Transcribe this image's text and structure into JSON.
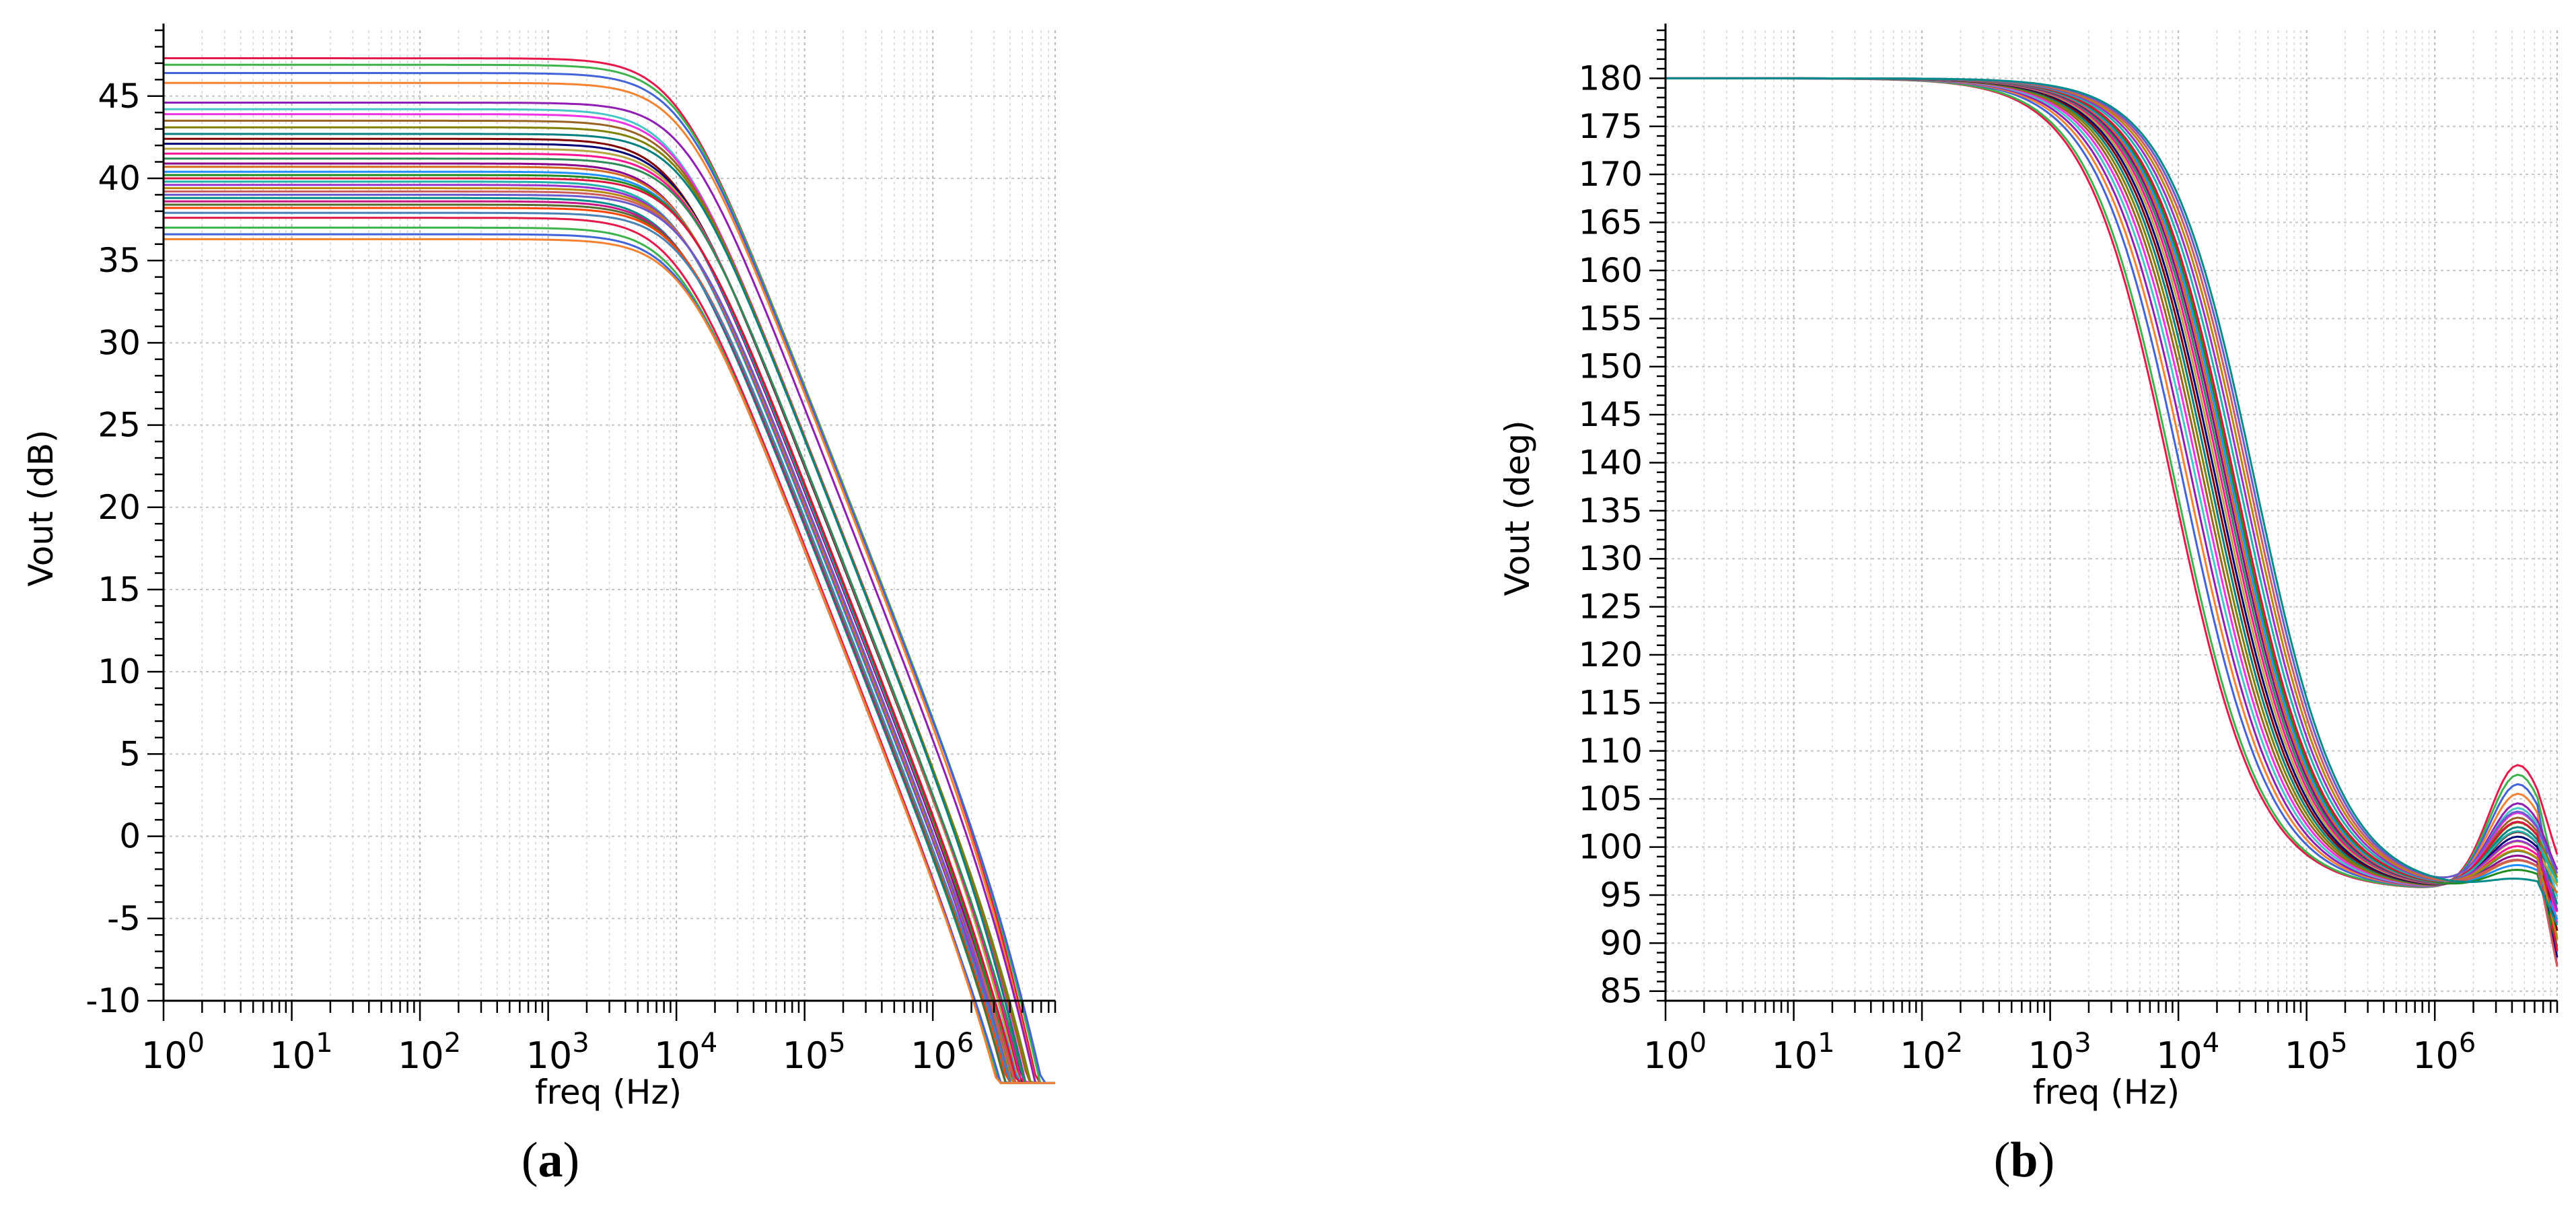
{
  "chart_data": [
    {
      "type": "line",
      "panel_label": "a",
      "xlabel": "freq (Hz)",
      "ylabel": "Vout (dB)",
      "xscale": "log",
      "xlim": [
        1,
        9000000
      ],
      "ylim": [
        -10,
        49
      ],
      "x_ticks": [
        1,
        10,
        100,
        1000,
        10000,
        100000,
        1000000
      ],
      "x_tick_labels": [
        {
          "base": "10",
          "exp": "0"
        },
        {
          "base": "10",
          "exp": "1"
        },
        {
          "base": "10",
          "exp": "2"
        },
        {
          "base": "10",
          "exp": "3"
        },
        {
          "base": "10",
          "exp": "4"
        },
        {
          "base": "10",
          "exp": "5"
        },
        {
          "base": "10",
          "exp": "6"
        }
      ],
      "y_ticks": [
        -10,
        -5,
        0,
        5,
        10,
        15,
        20,
        25,
        30,
        35,
        40,
        45
      ],
      "y_tick_labels": [
        "-10",
        "-5",
        "0",
        "5",
        "10",
        "15",
        "20",
        "25",
        "30",
        "35",
        "40",
        "45"
      ],
      "grid": true,
      "model": "two-pole low-pass; curves share f3dB ≈ 1.1e4 Hz, second pole ≈ 4e6 Hz",
      "series_colors": [
        "#e6194b",
        "#3cb44b",
        "#4363d8",
        "#f58231",
        "#911eb4",
        "#46c6c6",
        "#f032e6",
        "#9a6324",
        "#808000",
        "#008080",
        "#800000",
        "#000075",
        "#b5a642",
        "#ff1493",
        "#2e8b57",
        "#8b008b",
        "#d2691e",
        "#1e90ff",
        "#228b22",
        "#dc143c",
        "#20b2aa",
        "#9932cc",
        "#b8860b",
        "#cd5c5c",
        "#6a5acd",
        "#008b8b",
        "#c71585",
        "#556b2f",
        "#ff4500",
        "#4682b4"
      ],
      "series": [
        {
          "dc_gain_db": 47.3
        },
        {
          "dc_gain_db": 46.9
        },
        {
          "dc_gain_db": 46.4
        },
        {
          "dc_gain_db": 45.8
        },
        {
          "dc_gain_db": 44.6
        },
        {
          "dc_gain_db": 44.2
        },
        {
          "dc_gain_db": 43.9
        },
        {
          "dc_gain_db": 43.5
        },
        {
          "dc_gain_db": 43.1
        },
        {
          "dc_gain_db": 42.7
        },
        {
          "dc_gain_db": 42.4
        },
        {
          "dc_gain_db": 42.1
        },
        {
          "dc_gain_db": 41.8
        },
        {
          "dc_gain_db": 41.5
        },
        {
          "dc_gain_db": 41.2
        },
        {
          "dc_gain_db": 40.9
        },
        {
          "dc_gain_db": 40.7
        },
        {
          "dc_gain_db": 40.4
        },
        {
          "dc_gain_db": 40.2
        },
        {
          "dc_gain_db": 40.0
        },
        {
          "dc_gain_db": 39.8
        },
        {
          "dc_gain_db": 39.6
        },
        {
          "dc_gain_db": 39.4
        },
        {
          "dc_gain_db": 39.2
        },
        {
          "dc_gain_db": 39.0
        },
        {
          "dc_gain_db": 38.8
        },
        {
          "dc_gain_db": 38.6
        },
        {
          "dc_gain_db": 38.4
        },
        {
          "dc_gain_db": 38.2
        },
        {
          "dc_gain_db": 37.9
        },
        {
          "dc_gain_db": 37.6
        },
        {
          "dc_gain_db": 37.0
        },
        {
          "dc_gain_db": 36.6
        },
        {
          "dc_gain_db": 36.3
        }
      ]
    },
    {
      "type": "line",
      "panel_label": "b",
      "xlabel": "freq (Hz)",
      "ylabel": "Vout (deg)",
      "xscale": "log",
      "xlim": [
        1,
        9000000
      ],
      "ylim": [
        84,
        185
      ],
      "x_ticks": [
        1,
        10,
        100,
        1000,
        10000,
        100000,
        1000000
      ],
      "x_tick_labels": [
        {
          "base": "10",
          "exp": "0"
        },
        {
          "base": "10",
          "exp": "1"
        },
        {
          "base": "10",
          "exp": "2"
        },
        {
          "base": "10",
          "exp": "3"
        },
        {
          "base": "10",
          "exp": "4"
        },
        {
          "base": "10",
          "exp": "5"
        },
        {
          "base": "10",
          "exp": "6"
        }
      ],
      "y_ticks": [
        85,
        90,
        95,
        100,
        105,
        110,
        115,
        120,
        125,
        130,
        135,
        140,
        145,
        150,
        155,
        160,
        165,
        170,
        175,
        180
      ],
      "y_tick_labels": [
        "85",
        "90",
        "95",
        "100",
        "105",
        "110",
        "115",
        "120",
        "125",
        "130",
        "135",
        "140",
        "145",
        "150",
        "155",
        "160",
        "165",
        "170",
        "175",
        "180"
      ],
      "grid": true,
      "model": "phase falls from 180 deg, minimum ≈ 95 deg near 3e5 Hz, bump ≈ 100-110 deg near 5e6 Hz",
      "series_colors": [
        "#e6194b",
        "#3cb44b",
        "#4363d8",
        "#f58231",
        "#911eb4",
        "#46c6c6",
        "#f032e6",
        "#9a6324",
        "#808000",
        "#008080",
        "#800000",
        "#000075",
        "#b5a642",
        "#ff1493",
        "#2e8b57",
        "#8b008b",
        "#d2691e",
        "#1e90ff",
        "#228b22",
        "#dc143c",
        "#20b2aa",
        "#9932cc",
        "#b8860b",
        "#cd5c5c",
        "#6a5acd",
        "#008b8b",
        "#c71585",
        "#556b2f",
        "#ff4500",
        "#4682b4"
      ],
      "series": [
        {
          "f_mid_hz": 9000,
          "end_peak_deg": 109
        },
        {
          "f_mid_hz": 9500,
          "end_peak_deg": 108
        },
        {
          "f_mid_hz": 11000,
          "end_peak_deg": 107
        },
        {
          "f_mid_hz": 12000,
          "end_peak_deg": 106
        },
        {
          "f_mid_hz": 13000,
          "end_peak_deg": 105
        },
        {
          "f_mid_hz": 14000,
          "end_peak_deg": 104.5
        },
        {
          "f_mid_hz": 15000,
          "end_peak_deg": 104
        },
        {
          "f_mid_hz": 16000,
          "end_peak_deg": 103.5
        },
        {
          "f_mid_hz": 17000,
          "end_peak_deg": 103
        },
        {
          "f_mid_hz": 18000,
          "end_peak_deg": 102.5
        },
        {
          "f_mid_hz": 19000,
          "end_peak_deg": 102
        },
        {
          "f_mid_hz": 20000,
          "end_peak_deg": 101.5
        },
        {
          "f_mid_hz": 21000,
          "end_peak_deg": 101
        },
        {
          "f_mid_hz": 22000,
          "end_peak_deg": 100.5
        },
        {
          "f_mid_hz": 23000,
          "end_peak_deg": 100
        },
        {
          "f_mid_hz": 24000,
          "end_peak_deg": 99.5
        },
        {
          "f_mid_hz": 25000,
          "end_peak_deg": 99
        },
        {
          "f_mid_hz": 26000,
          "end_peak_deg": 98.5
        },
        {
          "f_mid_hz": 27000,
          "end_peak_deg": 98
        },
        {
          "f_mid_hz": 28000,
          "end_peak_deg": 103
        },
        {
          "f_mid_hz": 30000,
          "end_peak_deg": 102
        },
        {
          "f_mid_hz": 32000,
          "end_peak_deg": 101
        },
        {
          "f_mid_hz": 34000,
          "end_peak_deg": 100
        },
        {
          "f_mid_hz": 36000,
          "end_peak_deg": 99
        },
        {
          "f_mid_hz": 38000,
          "end_peak_deg": 104
        },
        {
          "f_mid_hz": 40000,
          "end_peak_deg": 97
        }
      ]
    }
  ],
  "captions": {
    "a": {
      "open": "(",
      "letter": "a",
      "close": ")"
    },
    "b": {
      "open": "(",
      "letter": "b",
      "close": ")"
    }
  }
}
